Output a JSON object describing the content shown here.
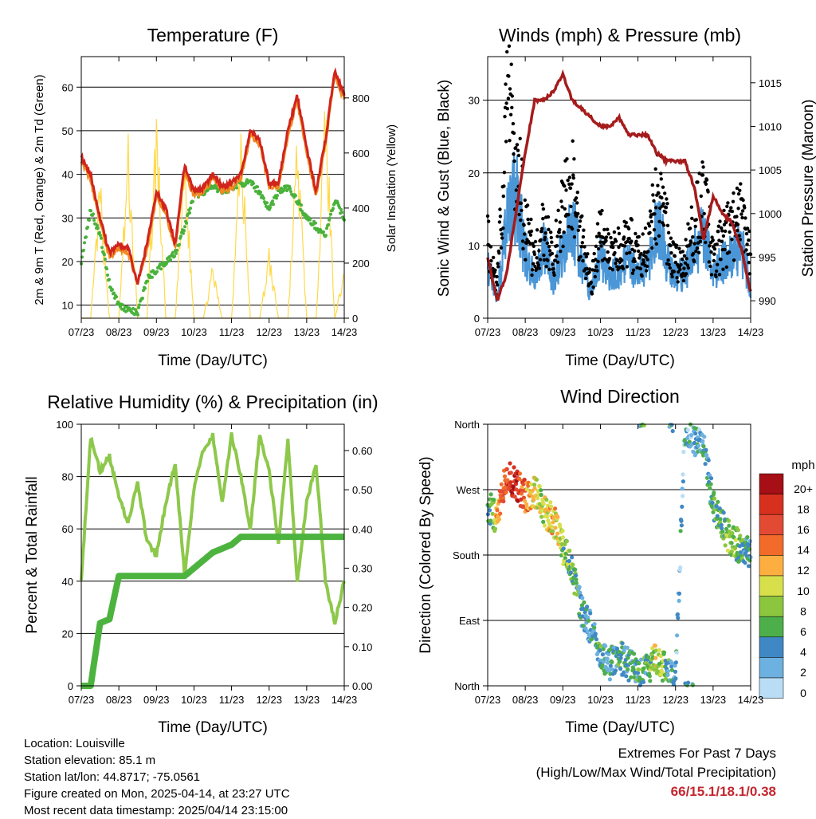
{
  "x_ticks": [
    "07/23",
    "08/23",
    "09/23",
    "10/23",
    "11/23",
    "12/23",
    "13/23",
    "14/23"
  ],
  "charts": {
    "temperature": {
      "title": "Temperature (F)",
      "xlabel": "Time (Day/UTC)",
      "ylabel": "2m & 9m T (Red, Orange) & 2m Td (Green)",
      "ylabel_right": "Solar Insolation (Yellow)",
      "yticks": [
        "10",
        "20",
        "30",
        "40",
        "50",
        "60"
      ],
      "yticks_right": [
        "0",
        "200",
        "400",
        "600",
        "800"
      ]
    },
    "winds": {
      "title": "Winds (mph) & Pressure (mb)",
      "xlabel": "Time (Day/UTC)",
      "ylabel": "Sonic Wind & Gust (Blue, Black)",
      "ylabel_right": "Station Pressure (Maroon)",
      "yticks": [
        "0",
        "10",
        "20",
        "30"
      ],
      "yticks_right": [
        "990",
        "995",
        "1000",
        "1005",
        "1010",
        "1015"
      ]
    },
    "humidity": {
      "title": "Relative Humidity (%) & Precipitation (in)",
      "xlabel": "Time (Day/UTC)",
      "ylabel": "Percent & Total Rainfall",
      "yticks": [
        "0",
        "20",
        "40",
        "60",
        "80",
        "100"
      ],
      "yticks_right": [
        "0.00",
        "0.10",
        "0.20",
        "0.30",
        "0.40",
        "0.50",
        "0.60"
      ]
    },
    "direction": {
      "title": "Wind Direction",
      "xlabel": "Time (Day/UTC)",
      "ylabel": "Direction (Colored By Speed)",
      "yticks": [
        "North",
        "East",
        "South",
        "West",
        "North"
      ],
      "legend_title": "mph",
      "legend_labels": [
        "20+",
        "18",
        "16",
        "14",
        "12",
        "10",
        "8",
        "6",
        "4",
        "2",
        "0"
      ],
      "legend_colors": [
        "#a50f15",
        "#d7301f",
        "#e34a33",
        "#f26b2a",
        "#fdae40",
        "#d7e04b",
        "#8cc63f",
        "#4daf4a",
        "#3f88c5",
        "#6cb1e0",
        "#b9ddf5"
      ]
    }
  },
  "chart_data": [
    {
      "type": "line",
      "x_day": [
        7.0,
        7.25,
        7.5,
        7.75,
        8.0,
        8.25,
        8.5,
        8.75,
        9.0,
        9.25,
        9.5,
        9.75,
        10.0,
        10.25,
        10.5,
        10.75,
        11.0,
        11.25,
        11.5,
        11.75,
        12.0,
        12.25,
        12.5,
        12.75,
        13.0,
        13.25,
        13.5,
        13.75,
        14.0
      ],
      "series": [
        {
          "values": [
            44,
            40,
            30,
            22,
            24,
            23,
            15,
            24,
            36,
            32,
            24,
            42,
            36,
            37,
            40,
            37,
            38,
            40,
            50,
            48,
            38,
            38,
            50,
            58,
            46,
            36,
            48,
            64,
            58
          ]
        },
        {
          "values": [
            43,
            39,
            29,
            21,
            23,
            22,
            15,
            23,
            35,
            31,
            23,
            41,
            35,
            36,
            39,
            36,
            37,
            39,
            49,
            47,
            37,
            37,
            49,
            57,
            45,
            35,
            47,
            63,
            57
          ]
        },
        {
          "values": [
            20,
            32,
            26,
            15,
            10,
            9,
            8,
            16,
            18,
            20,
            22,
            28,
            35,
            36,
            37,
            36,
            37,
            38,
            38,
            36,
            32,
            36,
            37,
            34,
            30,
            28,
            26,
            34,
            30
          ]
        },
        {
          "values": [
            0,
            0,
            540,
            0,
            0,
            680,
            0,
            0,
            800,
            0,
            0,
            650,
            0,
            0,
            200,
            0,
            0,
            760,
            0,
            0,
            260,
            0,
            0,
            720,
            0,
            0,
            880,
            0,
            200
          ]
        }
      ],
      "ylim": [
        7,
        67
      ],
      "ylim_right": [
        0,
        950
      ]
    },
    {
      "type": "line",
      "x_day": [
        7.0,
        7.25,
        7.5,
        7.75,
        8.0,
        8.25,
        8.5,
        8.75,
        9.0,
        9.25,
        9.5,
        9.75,
        10.0,
        10.25,
        10.5,
        10.75,
        11.0,
        11.25,
        11.5,
        11.75,
        12.0,
        12.25,
        12.5,
        12.75,
        13.0,
        13.25,
        13.5,
        13.75,
        14.0
      ],
      "series": [
        {
          "values": [
            7,
            2,
            12,
            16,
            8,
            5,
            9,
            5,
            9,
            12,
            7,
            3,
            8,
            5,
            6,
            7,
            6,
            6,
            12,
            8,
            5,
            6,
            8,
            11,
            5,
            7,
            8,
            9,
            4
          ]
        },
        {
          "values": [
            10,
            4,
            28,
            22,
            12,
            8,
            12,
            8,
            14,
            18,
            10,
            4,
            12,
            8,
            9,
            10,
            9,
            9,
            16,
            12,
            7,
            8,
            12,
            16,
            8,
            10,
            12,
            14,
            8
          ]
        },
        {
          "values": [
            995,
            990,
            993,
            1000,
            1007,
            1013,
            1013,
            1014,
            1016,
            1013,
            1012,
            1011,
            1010,
            1010,
            1011,
            1009,
            1009,
            1009,
            1007,
            1006,
            1006,
            1006,
            1003,
            997,
            1002,
            1000,
            999,
            996,
            991
          ]
        }
      ],
      "ylim": [
        0,
        36
      ],
      "ylim_right": [
        988,
        1018
      ]
    },
    {
      "type": "line",
      "x_day": [
        7.0,
        7.25,
        7.5,
        7.75,
        8.0,
        8.25,
        8.5,
        8.75,
        9.0,
        9.25,
        9.5,
        9.75,
        10.0,
        10.25,
        10.5,
        10.75,
        11.0,
        11.25,
        11.5,
        11.75,
        12.0,
        12.25,
        12.5,
        12.75,
        13.0,
        13.25,
        13.5,
        13.75,
        14.0
      ],
      "series": [
        {
          "values": [
            40,
            95,
            82,
            88,
            72,
            62,
            78,
            55,
            50,
            70,
            85,
            42,
            75,
            90,
            96,
            70,
            96,
            80,
            60,
            96,
            82,
            55,
            94,
            40,
            70,
            85,
            40,
            24,
            40
          ]
        },
        {
          "values": [
            0,
            0,
            0.16,
            0.17,
            0.28,
            0.28,
            0.28,
            0.28,
            0.28,
            0.28,
            0.28,
            0.28,
            0.3,
            0.32,
            0.34,
            0.35,
            0.36,
            0.38,
            0.38,
            0.38,
            0.38,
            0.38,
            0.38,
            0.38,
            0.38,
            0.38,
            0.38,
            0.38,
            0.38
          ]
        }
      ],
      "ylim": [
        0,
        100
      ],
      "ylim_right": [
        0,
        0.667
      ]
    },
    {
      "type": "scatter",
      "x_day": [
        7.0,
        7.25,
        7.5,
        7.75,
        8.0,
        8.25,
        8.5,
        8.75,
        9.0,
        9.25,
        9.5,
        9.75,
        10.0,
        10.25,
        10.5,
        10.75,
        11.0,
        11.25,
        11.5,
        11.75,
        12.0,
        12.25,
        12.5,
        12.75,
        13.0,
        13.25,
        13.5,
        13.75,
        14.0
      ],
      "series": [
        {
          "values": [
            250,
            230,
            290,
            280,
            260,
            270,
            240,
            230,
            190,
            160,
            100,
            80,
            40,
            30,
            40,
            30,
            20,
            20,
            40,
            20,
            10,
            350,
            340,
            330,
            250,
            220,
            200,
            190,
            180
          ]
        },
        {
          "values": [
            3,
            12,
            16,
            18,
            14,
            10,
            9,
            11,
            8,
            6,
            4,
            3,
            5,
            3,
            5,
            4,
            5,
            6,
            10,
            6,
            3,
            3,
            3,
            4,
            5,
            7,
            8,
            6,
            4
          ]
        }
      ],
      "ylim": [
        0,
        360
      ]
    }
  ],
  "info": {
    "location": "Location: Louisville",
    "elevation": "Station elevation: 85.1 m",
    "latlon": "Station lat/lon: 44.8717; -75.0561",
    "created": "Figure created on Mon, 2025-04-14, at 23:27 UTC",
    "recent": "Most recent data timestamp: 2025/04/14 23:15:00"
  },
  "extremes": {
    "title": "Extremes For Past 7 Days",
    "subtitle": "(High/Low/Max Wind/Total Precipitation)",
    "values": "66/15.1/18.1/0.38"
  }
}
